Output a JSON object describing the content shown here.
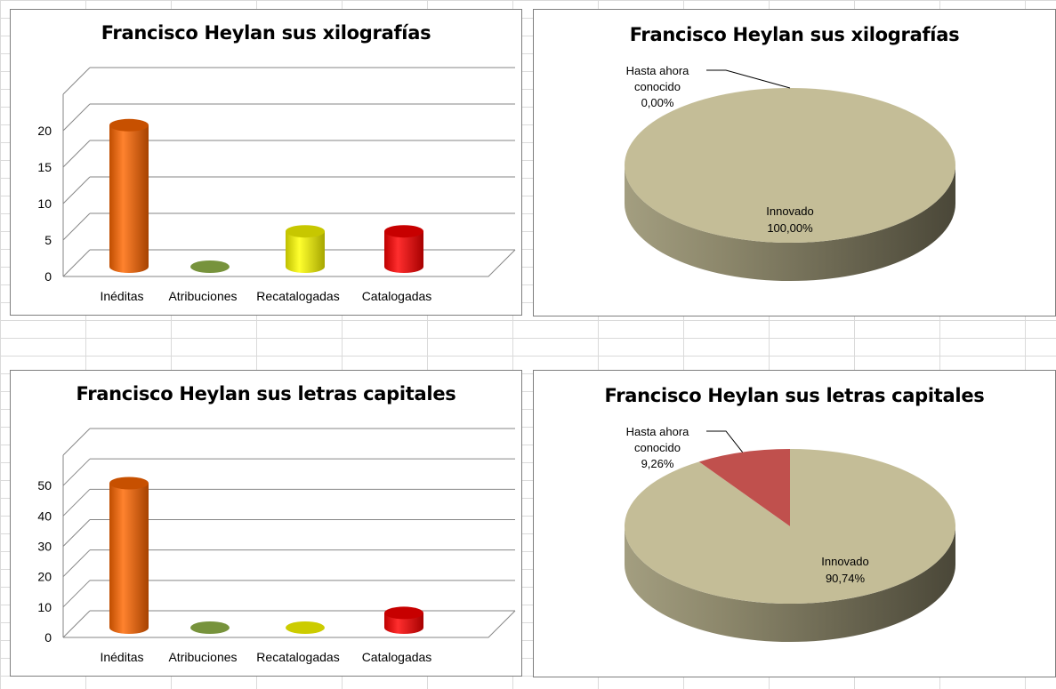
{
  "chart_data": [
    {
      "type": "bar",
      "title": "Francisco Heylan sus xilografías",
      "categories": [
        "Inéditas",
        "Atribuciones",
        "Recatalogadas",
        "Catalogadas"
      ],
      "values": [
        20,
        0,
        5,
        5
      ],
      "ylim": [
        0,
        25
      ],
      "yticks": [
        0,
        5,
        10,
        15,
        20
      ],
      "colors": [
        "#ff6600",
        "#77933c",
        "#ffff00",
        "#ff0000"
      ],
      "grid": true
    },
    {
      "type": "pie",
      "title": "Francisco Heylan sus xilografías",
      "slices": [
        {
          "label": "Hasta ahora conocido",
          "percent_label": "0,00%",
          "value": 0.0,
          "color": "#c0504d"
        },
        {
          "label": "Innovado",
          "percent_label": "100,00%",
          "value": 100.0,
          "color": "#c4bd97"
        }
      ],
      "style": "3d"
    },
    {
      "type": "bar",
      "title": "Francisco Heylan sus letras capitales",
      "categories": [
        "Inéditas",
        "Atribuciones",
        "Recatalogadas",
        "Catalogadas"
      ],
      "values": [
        49,
        0,
        0,
        5
      ],
      "ylim": [
        0,
        60
      ],
      "yticks": [
        0,
        10,
        20,
        30,
        40,
        50
      ],
      "colors": [
        "#ff6600",
        "#77933c",
        "#cccc00",
        "#ff0000"
      ],
      "grid": true
    },
    {
      "type": "pie",
      "title": "Francisco Heylan sus letras capitales",
      "slices": [
        {
          "label": "Hasta ahora conocido",
          "percent_label": "9,26%",
          "value": 9.26,
          "color": "#c0504d"
        },
        {
          "label": "Innovado",
          "percent_label": "90,74%",
          "value": 90.74,
          "color": "#c4bd97"
        }
      ],
      "style": "3d"
    }
  ]
}
